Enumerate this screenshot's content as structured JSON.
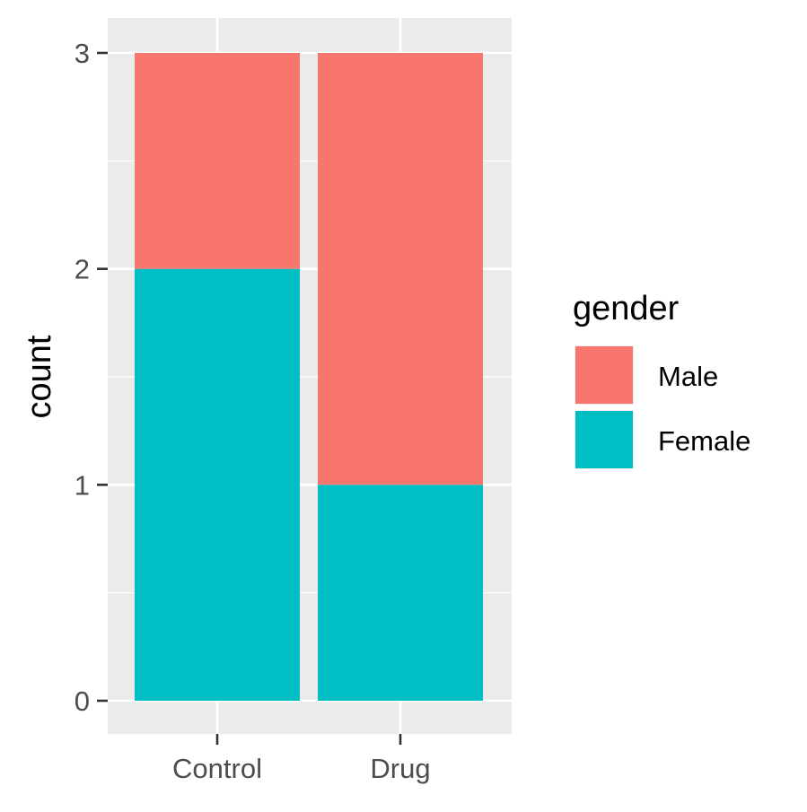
{
  "chart_data": {
    "type": "bar",
    "stacked": true,
    "categories": [
      "Control",
      "Drug"
    ],
    "series": [
      {
        "name": "Male",
        "values": [
          1,
          2
        ],
        "color": "#F8766D"
      },
      {
        "name": "Female",
        "values": [
          2,
          1
        ],
        "color": "#00BFC4"
      }
    ],
    "ylabel": "count",
    "xlabel": "",
    "ylim": [
      0,
      3
    ],
    "yticks": [
      0,
      1,
      2,
      3
    ],
    "legend": {
      "title": "gender",
      "position": "right"
    },
    "grid": true,
    "panel_background": "#EBEBEB",
    "grid_color": "#FFFFFF"
  }
}
